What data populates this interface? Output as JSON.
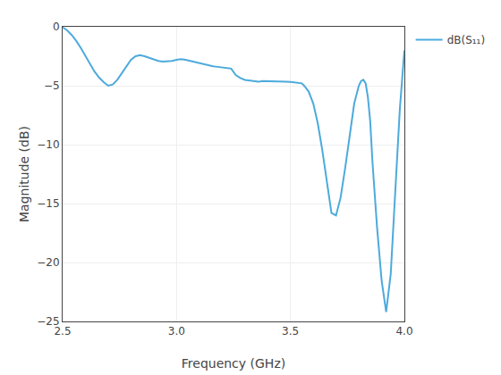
{
  "chart_data": {
    "type": "line",
    "xlabel": "Frequency (GHz)",
    "ylabel": "Magnitude (dB)",
    "x": [
      2.5,
      2.52,
      2.54,
      2.56,
      2.58,
      2.6,
      2.62,
      2.64,
      2.66,
      2.68,
      2.7,
      2.72,
      2.74,
      2.76,
      2.78,
      2.8,
      2.82,
      2.84,
      2.86,
      2.88,
      2.9,
      2.92,
      2.94,
      2.96,
      2.98,
      3.0,
      3.02,
      3.04,
      3.06,
      3.08,
      3.1,
      3.12,
      3.14,
      3.16,
      3.18,
      3.2,
      3.22,
      3.24,
      3.26,
      3.28,
      3.3,
      3.32,
      3.34,
      3.36,
      3.38,
      3.4,
      3.41,
      3.42,
      3.44,
      3.46,
      3.48,
      3.5,
      3.51,
      3.52,
      3.53,
      3.54,
      3.55,
      3.56,
      3.58,
      3.6,
      3.62,
      3.64,
      3.66,
      3.68,
      3.7,
      3.72,
      3.74,
      3.76,
      3.78,
      3.8,
      3.81,
      3.82,
      3.83,
      3.84,
      3.85,
      3.86,
      3.88,
      3.9,
      3.92,
      3.94,
      3.96,
      3.98,
      4.0
    ],
    "series": [
      {
        "name": "dB(S₁₁)",
        "color": "#4DAADC",
        "values": [
          -0.05,
          -0.3,
          -0.7,
          -1.2,
          -1.8,
          -2.5,
          -3.2,
          -3.8,
          -4.3,
          -4.7,
          -5.0,
          -4.9,
          -4.5,
          -3.9,
          -3.3,
          -2.8,
          -2.5,
          -2.4,
          -2.5,
          -2.65,
          -2.8,
          -2.9,
          -2.95,
          -2.95,
          -2.9,
          -2.8,
          -2.75,
          -2.8,
          -2.9,
          -3.0,
          -3.1,
          -3.2,
          -3.3,
          -3.35,
          -3.4,
          -3.45,
          -3.5,
          -3.55,
          -4.1,
          -4.35,
          -4.5,
          -4.55,
          -4.6,
          -4.65,
          -4.6,
          -4.6,
          -4.62,
          -4.65,
          -4.65,
          -4.65,
          -4.65,
          -4.68,
          -4.7,
          -4.72,
          -4.72,
          -4.75,
          -4.8,
          -5.0,
          -5.5,
          -6.5,
          -8.2,
          -10.5,
          -13.2,
          -15.8,
          -16.0,
          -14.5,
          -12.0,
          -9.2,
          -6.5,
          -5.0,
          -4.6,
          -4.5,
          -4.8,
          -6.0,
          -8.0,
          -11.5,
          -17.0,
          -21.5,
          -24.2,
          -21.0,
          -14.0,
          -7.0,
          -2.0
        ]
      }
    ],
    "xlim": [
      2.5,
      4.0
    ],
    "ylim": [
      -25,
      0
    ],
    "xticks": [
      2.5,
      {
        "value": 3.0,
        "label": "3.0"
      },
      3.5,
      {
        "value": 4.0,
        "label": "4.0"
      }
    ],
    "yticks": [
      0,
      -5,
      -10,
      -15,
      -20,
      -25
    ],
    "grid": true,
    "legend": "right"
  }
}
